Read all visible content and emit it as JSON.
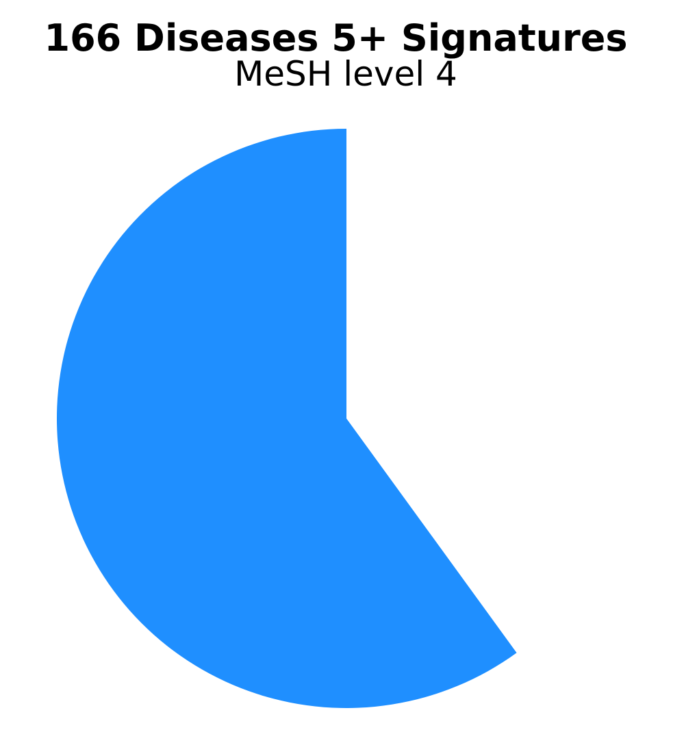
{
  "chart_data": {
    "type": "pie",
    "title": "166 Diseases 5+ Signatures",
    "subtitle": "MeSH level 4",
    "slices": [
      {
        "value": 0.6,
        "color": "#1f8fff"
      },
      {
        "value": 0.4,
        "color": "#ffffff"
      }
    ],
    "start_angle": "top",
    "direction": "counterclockwise",
    "legend": "none"
  }
}
